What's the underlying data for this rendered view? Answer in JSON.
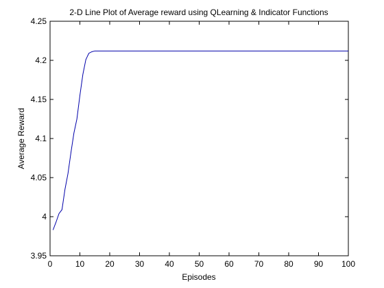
{
  "chart_data": {
    "type": "line",
    "title": "2-D Line Plot of Average reward using QLearning & Indicator Functions",
    "xlabel": "Episodes",
    "ylabel": "Average Reward",
    "xlim": [
      0,
      100
    ],
    "ylim": [
      3.95,
      4.25
    ],
    "x_ticks": [
      0,
      10,
      20,
      30,
      40,
      50,
      60,
      70,
      80,
      90,
      100
    ],
    "y_ticks": [
      3.95,
      4,
      4.05,
      4.1,
      4.15,
      4.2,
      4.25
    ],
    "x_tick_labels": [
      "0",
      "10",
      "20",
      "30",
      "40",
      "50",
      "60",
      "70",
      "80",
      "90",
      "100"
    ],
    "y_tick_labels": [
      "3.95",
      "4",
      "4.05",
      "4.1",
      "4.15",
      "4.2",
      "4.25"
    ],
    "grid": false,
    "series": [
      {
        "color": "#0000aa",
        "x": [
          1,
          2,
          3,
          4,
          5,
          6,
          7,
          8,
          9,
          10,
          11,
          12,
          13,
          14,
          15,
          16,
          17,
          18,
          19,
          20,
          25,
          30,
          40,
          50,
          60,
          70,
          80,
          90,
          100
        ],
        "y": [
          3.983,
          3.993,
          4.004,
          4.009,
          4.035,
          4.055,
          4.082,
          4.107,
          4.125,
          4.155,
          4.182,
          4.201,
          4.209,
          4.211,
          4.212,
          4.212,
          4.212,
          4.212,
          4.212,
          4.212,
          4.212,
          4.212,
          4.212,
          4.212,
          4.212,
          4.212,
          4.212,
          4.212,
          4.212
        ]
      }
    ]
  }
}
